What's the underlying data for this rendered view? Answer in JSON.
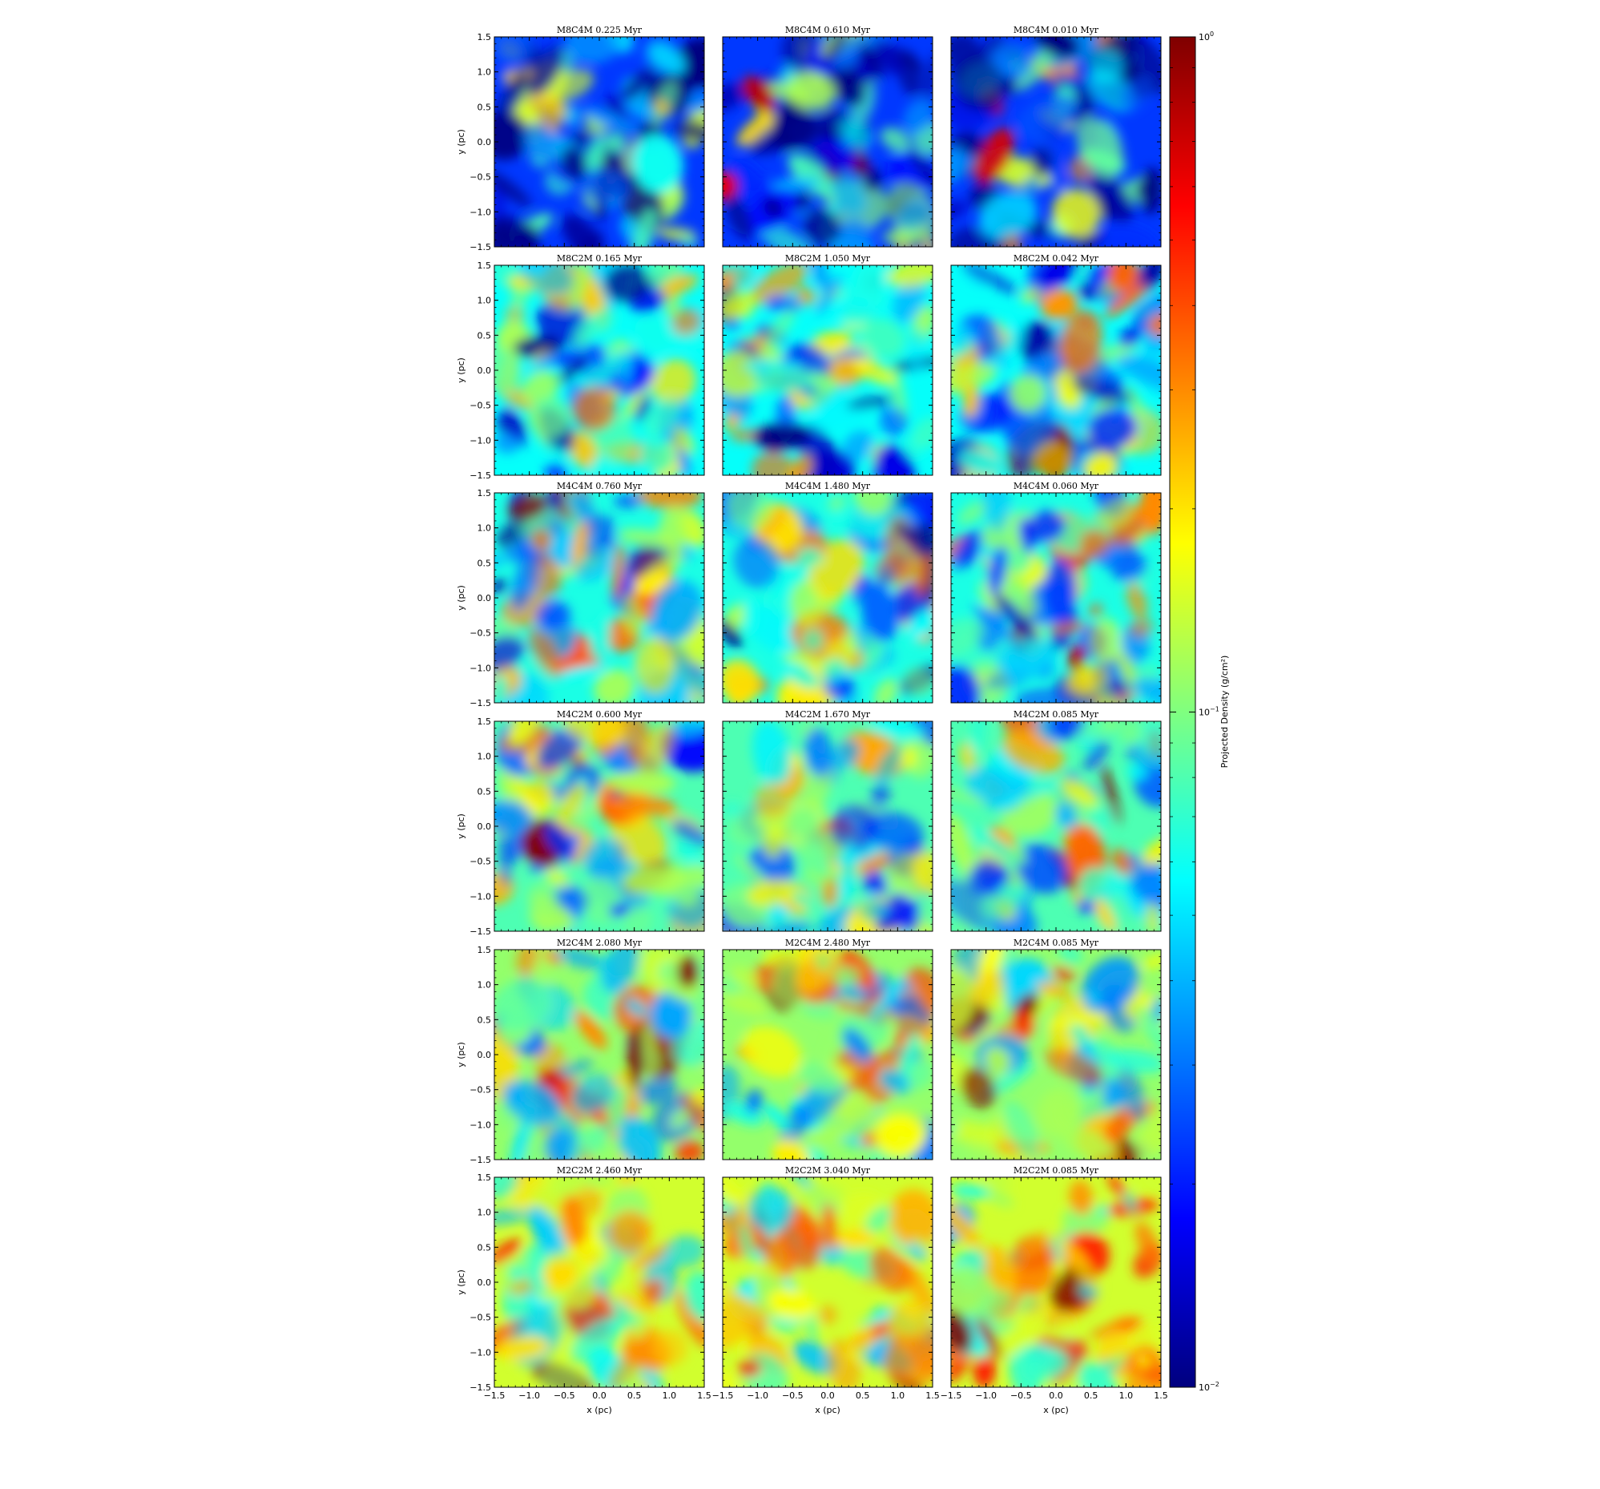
{
  "chart_data": {
    "type": "heatmap",
    "layout": {
      "rows": 6,
      "cols": 3
    },
    "xlabel": "x  (pc)",
    "ylabel": "y  (pc)",
    "xlim": [
      -1.5,
      1.5
    ],
    "ylim": [
      -1.5,
      1.5
    ],
    "x_ticks": [
      "−1.5",
      "−1.0",
      "−0.5",
      "0.0",
      "0.5",
      "1.0",
      "1.5"
    ],
    "y_ticks": [
      "1.5",
      "1.0",
      "0.5",
      "0.0",
      "−0.5",
      "−1.0",
      "−1.5"
    ],
    "colormap": "jet",
    "colorbar": {
      "label": "Projected Density  (g/cm²)",
      "scale": "log",
      "range": [
        0.01,
        1
      ],
      "ticks": [
        {
          "value": 1,
          "base": "10",
          "exp": "0"
        },
        {
          "value": 0.1,
          "base": "10",
          "exp": "−1"
        },
        {
          "value": 0.01,
          "base": "10",
          "exp": "−2"
        }
      ]
    },
    "panels": [
      {
        "title": "M8C4M  0.225 Myr",
        "model": "M8C4M",
        "time_myr": 0.225
      },
      {
        "title": "M8C4M  0.610 Myr",
        "model": "M8C4M",
        "time_myr": 0.61
      },
      {
        "title": "M8C4M  0.010 Myr",
        "model": "M8C4M",
        "time_myr": 0.01
      },
      {
        "title": "M8C2M  0.165 Myr",
        "model": "M8C2M",
        "time_myr": 0.165
      },
      {
        "title": "M8C2M  1.050 Myr",
        "model": "M8C2M",
        "time_myr": 1.05
      },
      {
        "title": "M8C2M  0.042 Myr",
        "model": "M8C2M",
        "time_myr": 0.042
      },
      {
        "title": "M4C4M  0.760 Myr",
        "model": "M4C4M",
        "time_myr": 0.76
      },
      {
        "title": "M4C4M  1.480 Myr",
        "model": "M4C4M",
        "time_myr": 1.48
      },
      {
        "title": "M4C4M  0.060 Myr",
        "model": "M4C4M",
        "time_myr": 0.06
      },
      {
        "title": "M4C2M  0.600 Myr",
        "model": "M4C2M",
        "time_myr": 0.6
      },
      {
        "title": "M4C2M  1.670 Myr",
        "model": "M4C2M",
        "time_myr": 1.67
      },
      {
        "title": "M4C2M  0.085 Myr",
        "model": "M4C2M",
        "time_myr": 0.085
      },
      {
        "title": "M2C4M  2.080 Myr",
        "model": "M2C4M",
        "time_myr": 2.08
      },
      {
        "title": "M2C4M  2.480 Myr",
        "model": "M2C4M",
        "time_myr": 2.48
      },
      {
        "title": "M2C4M  0.085 Myr",
        "model": "M2C4M",
        "time_myr": 0.085
      },
      {
        "title": "M2C2M  2.460 Myr",
        "model": "M2C2M",
        "time_myr": 2.46
      },
      {
        "title": "M2C2M  3.040 Myr",
        "model": "M2C2M",
        "time_myr": 3.04
      },
      {
        "title": "M2C2M  0.085 Myr",
        "model": "M2C2M",
        "time_myr": 0.085
      }
    ]
  }
}
